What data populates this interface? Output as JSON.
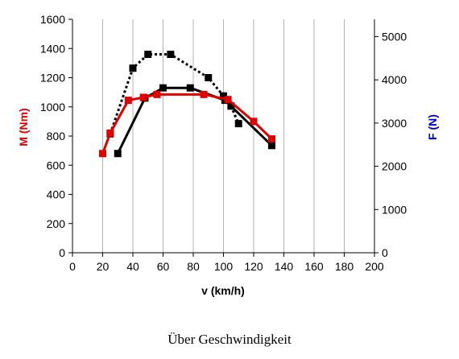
{
  "caption": "Über Geschwindigkeit",
  "chart_data": {
    "type": "line",
    "xlabel": "v (km/h)",
    "ylabel_left": "M (Nm)",
    "ylabel_right": "F (N)",
    "xlim": [
      0,
      200
    ],
    "x_ticks": [
      0,
      20,
      40,
      60,
      80,
      100,
      120,
      140,
      160,
      180,
      200
    ],
    "ylim_left": [
      0,
      1600
    ],
    "y_ticks_left": [
      0,
      200,
      400,
      600,
      800,
      1000,
      1200,
      1400,
      1600
    ],
    "ylim_right": [
      0,
      5400
    ],
    "y_ticks_right": [
      0,
      1000,
      2000,
      3000,
      4000,
      5000
    ],
    "grid": "vertical",
    "colors": {
      "ylabel_left": "#e60000",
      "ylabel_right": "#0000cc"
    },
    "series": [
      {
        "axis": "left",
        "color": "#e00000",
        "style": "solid",
        "marker": "square",
        "x": [
          20,
          25,
          37,
          47,
          56,
          87,
          103,
          120,
          132
        ],
        "y": [
          680,
          820,
          1045,
          1065,
          1085,
          1085,
          1050,
          900,
          780
        ]
      },
      {
        "axis": "left",
        "color": "#000000",
        "style": "solid",
        "marker": "square",
        "x": [
          30,
          48,
          60,
          78,
          101,
          132
        ],
        "y": [
          680,
          1060,
          1130,
          1130,
          1045,
          735
        ]
      },
      {
        "axis": "left",
        "color": "#000000",
        "style": "dotted",
        "marker": "square",
        "x": [
          25,
          40,
          50,
          65,
          90,
          100,
          105,
          110
        ],
        "y": [
          815,
          1265,
          1360,
          1360,
          1200,
          1075,
          1005,
          885
        ]
      }
    ]
  }
}
